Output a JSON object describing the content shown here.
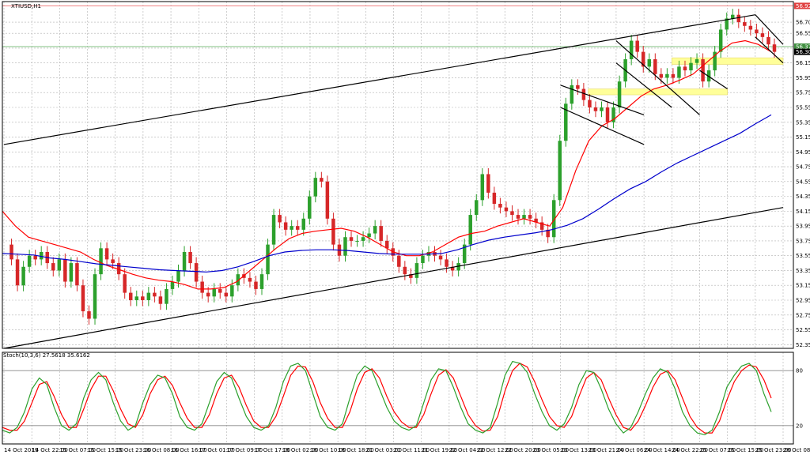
{
  "chart_data": [
    {
      "type": "candlestick",
      "title": "XTIUSD,H1",
      "colors": {
        "up": "#2ca02c",
        "down": "#d62728",
        "ma_fast": "#ff0000",
        "ma_slow": "#0000cc",
        "trend": "#000000",
        "hline_red": "#f08080",
        "hline_green": "#80c080",
        "zone": "#ffff99"
      },
      "y_ticks": [
        "56.70",
        "56.55",
        "56.35",
        "56.15",
        "55.95",
        "55.75",
        "55.55",
        "55.35",
        "55.15",
        "54.95",
        "54.75",
        "54.55",
        "54.35",
        "54.15",
        "53.95",
        "53.75",
        "53.55",
        "53.35",
        "53.15",
        "52.95",
        "52.75",
        "52.55",
        "52.35"
      ],
      "ylim": [
        52.3,
        56.85
      ],
      "price_labels": [
        "56.92",
        "56.37",
        "56.30"
      ],
      "x_ticks": [
        "14 Oct 2019",
        "14 Oct 22:00",
        "15 Oct 07:00",
        "15 Oct 15:00",
        "15 Oct 23:00",
        "16 Oct 08:00",
        "16 Oct 16:00",
        "17 Oct 01:00",
        "17 Oct 09:00",
        "17 Oct 17:00",
        "18 Oct 02:00",
        "18 Oct 10:00",
        "18 Oct 18:00",
        "21 Oct 03:00",
        "21 Oct 11:00",
        "21 Oct 19:00",
        "22 Oct 04:00",
        "22 Oct 12:00",
        "22 Oct 20:00",
        "23 Oct 05:00",
        "23 Oct 13:00",
        "23 Oct 21:00",
        "24 Oct 06:00",
        "24 Oct 14:00",
        "24 Oct 22:00",
        "25 Oct 07:00",
        "25 Oct 15:00",
        "25 Oct 23:00",
        "28 Oct 08:00"
      ],
      "close_path": [
        53.7,
        53.5,
        53.15,
        53.4,
        53.55,
        53.5,
        53.6,
        53.45,
        53.35,
        53.5,
        53.2,
        53.45,
        53.15,
        52.8,
        52.7,
        53.3,
        53.65,
        53.5,
        53.45,
        53.3,
        53.05,
        52.95,
        53.0,
        52.95,
        53.05,
        53.0,
        52.9,
        53.1,
        53.2,
        53.35,
        53.6,
        53.45,
        53.2,
        53.05,
        53.0,
        53.1,
        53.05,
        53.0,
        53.15,
        53.3,
        53.25,
        53.2,
        53.1,
        53.3,
        53.7,
        54.1,
        54.0,
        53.9,
        53.95,
        53.9,
        54.05,
        54.35,
        54.6,
        54.55,
        54.05,
        53.7,
        53.55,
        53.8,
        53.75,
        53.75,
        53.8,
        53.85,
        53.95,
        53.75,
        53.65,
        53.55,
        53.4,
        53.3,
        53.25,
        53.45,
        53.55,
        53.6,
        53.55,
        53.5,
        53.4,
        53.35,
        53.45,
        53.7,
        54.1,
        54.3,
        54.65,
        54.4,
        54.25,
        54.2,
        54.15,
        54.1,
        54.05,
        54.1,
        54.05,
        54.0,
        53.9,
        53.8,
        54.3,
        55.1,
        55.6,
        55.85,
        55.8,
        55.65,
        55.55,
        55.5,
        55.55,
        55.35,
        55.55,
        55.9,
        56.2,
        56.45,
        56.3,
        56.1,
        56.2,
        56.0,
        55.95,
        56.0,
        55.95,
        56.1,
        56.05,
        56.15,
        56.2,
        55.9,
        56.05,
        56.3,
        56.6,
        56.75,
        56.8,
        56.7,
        56.65,
        56.6,
        56.55,
        56.5,
        56.4,
        56.3
      ],
      "ma_fast": [
        54.15,
        53.95,
        53.8,
        53.75,
        53.7,
        53.65,
        53.6,
        53.5,
        53.42,
        53.36,
        53.3,
        53.25,
        53.22,
        53.2,
        53.16,
        53.1,
        53.1,
        53.12,
        53.2,
        53.35,
        53.5,
        53.65,
        53.78,
        53.85,
        53.88,
        53.9,
        53.92,
        53.88,
        53.8,
        53.7,
        53.6,
        53.55,
        53.55,
        53.6,
        53.7,
        53.8,
        53.85,
        53.88,
        53.95,
        54.0,
        54.05,
        54.0,
        53.95,
        54.2,
        54.7,
        55.1,
        55.3,
        55.4,
        55.55,
        55.7,
        55.8,
        55.85,
        55.92,
        56.0,
        56.15,
        56.3,
        56.42,
        56.45,
        56.4,
        56.3
      ],
      "ma_slow": [
        53.58,
        53.57,
        53.56,
        53.52,
        53.5,
        53.47,
        53.44,
        53.42,
        53.4,
        53.38,
        53.36,
        53.35,
        53.34,
        53.33,
        53.35,
        53.4,
        53.47,
        53.55,
        53.6,
        53.62,
        53.63,
        53.63,
        53.62,
        53.6,
        53.58,
        53.57,
        53.57,
        53.57,
        53.58,
        53.63,
        53.7,
        53.76,
        53.8,
        53.83,
        53.86,
        53.9,
        53.96,
        54.05,
        54.18,
        54.32,
        54.45,
        54.55,
        54.68,
        54.8,
        54.9,
        55.0,
        55.1,
        55.2,
        55.33,
        55.45
      ],
      "trendlines": [
        {
          "from": [
            "14 Oct 2019",
            55.05
          ],
          "to": [
            "25 Oct 23:00",
            56.8
          ]
        },
        {
          "from": [
            "14 Oct 2019",
            52.3
          ],
          "to": [
            "28 Oct 08:00",
            54.2
          ]
        }
      ],
      "channels": [
        {
          "from": [
            "23 Oct 13:00",
            55.85
          ],
          "to": [
            "24 Oct 14:00",
            55.45
          ]
        },
        {
          "from": [
            "23 Oct 13:00",
            55.55
          ],
          "to": [
            "24 Oct 14:00",
            55.05
          ]
        },
        {
          "from": [
            "24 Oct 06:00",
            56.45
          ],
          "to": [
            "25 Oct 07:00",
            55.45
          ]
        },
        {
          "from": [
            "24 Oct 06:00",
            56.15
          ],
          "to": [
            "24 Oct 22:00",
            55.55
          ]
        },
        {
          "from": [
            "25 Oct 07:00",
            56.05
          ],
          "to": [
            "25 Oct 15:00",
            55.8
          ]
        },
        {
          "from": [
            "25 Oct 23:00",
            56.8
          ],
          "to": [
            "28 Oct 08:00",
            56.4
          ]
        },
        {
          "from": [
            "25 Oct 23:00",
            56.5
          ],
          "to": [
            "28 Oct 08:00",
            56.15
          ]
        }
      ],
      "zones": [
        {
          "from": "24 Oct 22:00",
          "to": "28 Oct 08:00",
          "low": 56.13,
          "high": 56.22
        },
        {
          "from": "23 Oct 21:00",
          "to": "25 Oct 15:00",
          "low": 55.72,
          "high": 55.8
        }
      ],
      "hlines": [
        {
          "value": 56.92,
          "color": "red"
        },
        {
          "value": 56.37,
          "color": "green"
        }
      ]
    },
    {
      "type": "line",
      "title": "Stoch(10,3,6) 27.5618 35.6162",
      "ylim": [
        0,
        100
      ],
      "levels": [
        "80",
        "20"
      ],
      "main": [
        15,
        12,
        18,
        35,
        60,
        72,
        65,
        40,
        20,
        15,
        22,
        50,
        70,
        78,
        70,
        45,
        25,
        15,
        20,
        45,
        65,
        75,
        72,
        55,
        30,
        18,
        15,
        22,
        45,
        68,
        78,
        72,
        50,
        30,
        18,
        15,
        20,
        40,
        68,
        85,
        88,
        80,
        55,
        30,
        18,
        15,
        22,
        50,
        75,
        85,
        80,
        60,
        40,
        25,
        18,
        15,
        20,
        45,
        70,
        82,
        80,
        62,
        40,
        22,
        15,
        12,
        18,
        45,
        75,
        90,
        88,
        78,
        55,
        35,
        20,
        15,
        22,
        40,
        65,
        80,
        78,
        60,
        38,
        22,
        12,
        18,
        35,
        55,
        72,
        82,
        78,
        60,
        35,
        20,
        12,
        10,
        15,
        35,
        62,
        75,
        85,
        88,
        80,
        55,
        35
      ],
      "signal": [
        18,
        15,
        15,
        25,
        45,
        65,
        68,
        52,
        32,
        18,
        18,
        38,
        60,
        74,
        74,
        58,
        38,
        22,
        18,
        32,
        55,
        70,
        74,
        64,
        45,
        28,
        18,
        18,
        32,
        55,
        72,
        75,
        62,
        42,
        25,
        18,
        18,
        30,
        52,
        75,
        85,
        84,
        68,
        45,
        28,
        18,
        18,
        35,
        60,
        78,
        82,
        72,
        52,
        35,
        24,
        18,
        18,
        32,
        55,
        75,
        81,
        72,
        52,
        32,
        20,
        14,
        15,
        30,
        58,
        80,
        88,
        84,
        68,
        48,
        30,
        20,
        18,
        30,
        52,
        72,
        78,
        70,
        50,
        32,
        18,
        15,
        25,
        42,
        62,
        76,
        80,
        70,
        50,
        30,
        18,
        12,
        12,
        25,
        48,
        68,
        80,
        86,
        84,
        70,
        50
      ]
    }
  ]
}
